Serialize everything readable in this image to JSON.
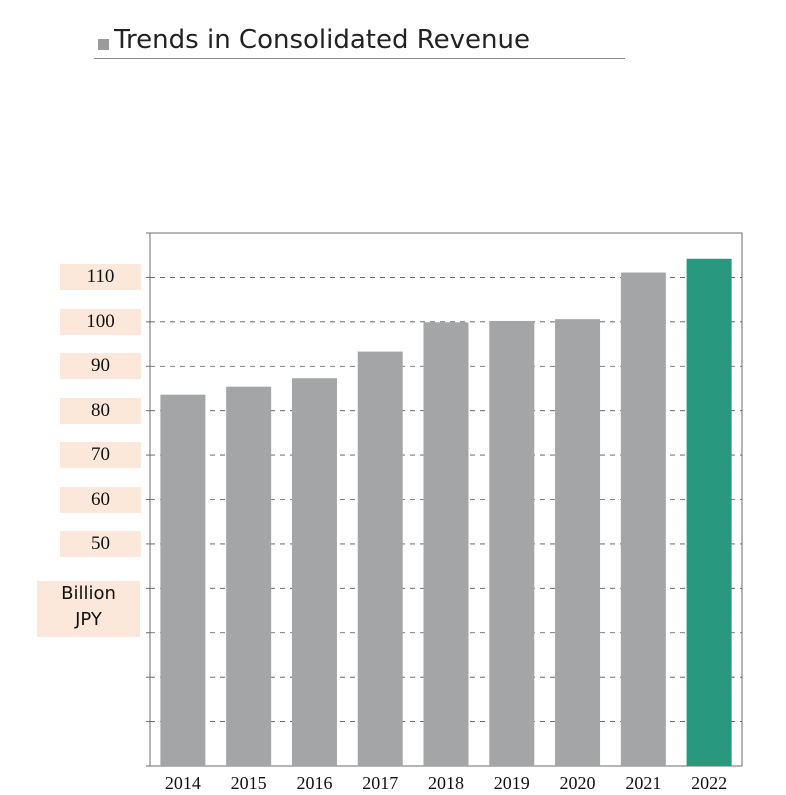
{
  "header": {
    "title": "Trends in Consolidated Revenue"
  },
  "unit_label": {
    "line1": "Billion",
    "line2": "JPY"
  },
  "colors": {
    "bar": "#a4a5a7",
    "highlight": "#28987f",
    "label_bg": "#fbe8da"
  },
  "chart_data": {
    "type": "bar",
    "title": "Trends in Consolidated Revenue",
    "xlabel": "",
    "ylabel": "Billion JPY",
    "categories": [
      "2014",
      "2015",
      "2016",
      "2017",
      "2018",
      "2019",
      "2020",
      "2021",
      "2022"
    ],
    "values": [
      83.6,
      85.4,
      87.3,
      93.3,
      99.9,
      100.2,
      100.6,
      111.1,
      114.2
    ],
    "highlight_index": 8,
    "ylim": [
      0,
      120
    ],
    "yticks": [
      50,
      60,
      70,
      80,
      90,
      100,
      110
    ],
    "grid": true
  }
}
